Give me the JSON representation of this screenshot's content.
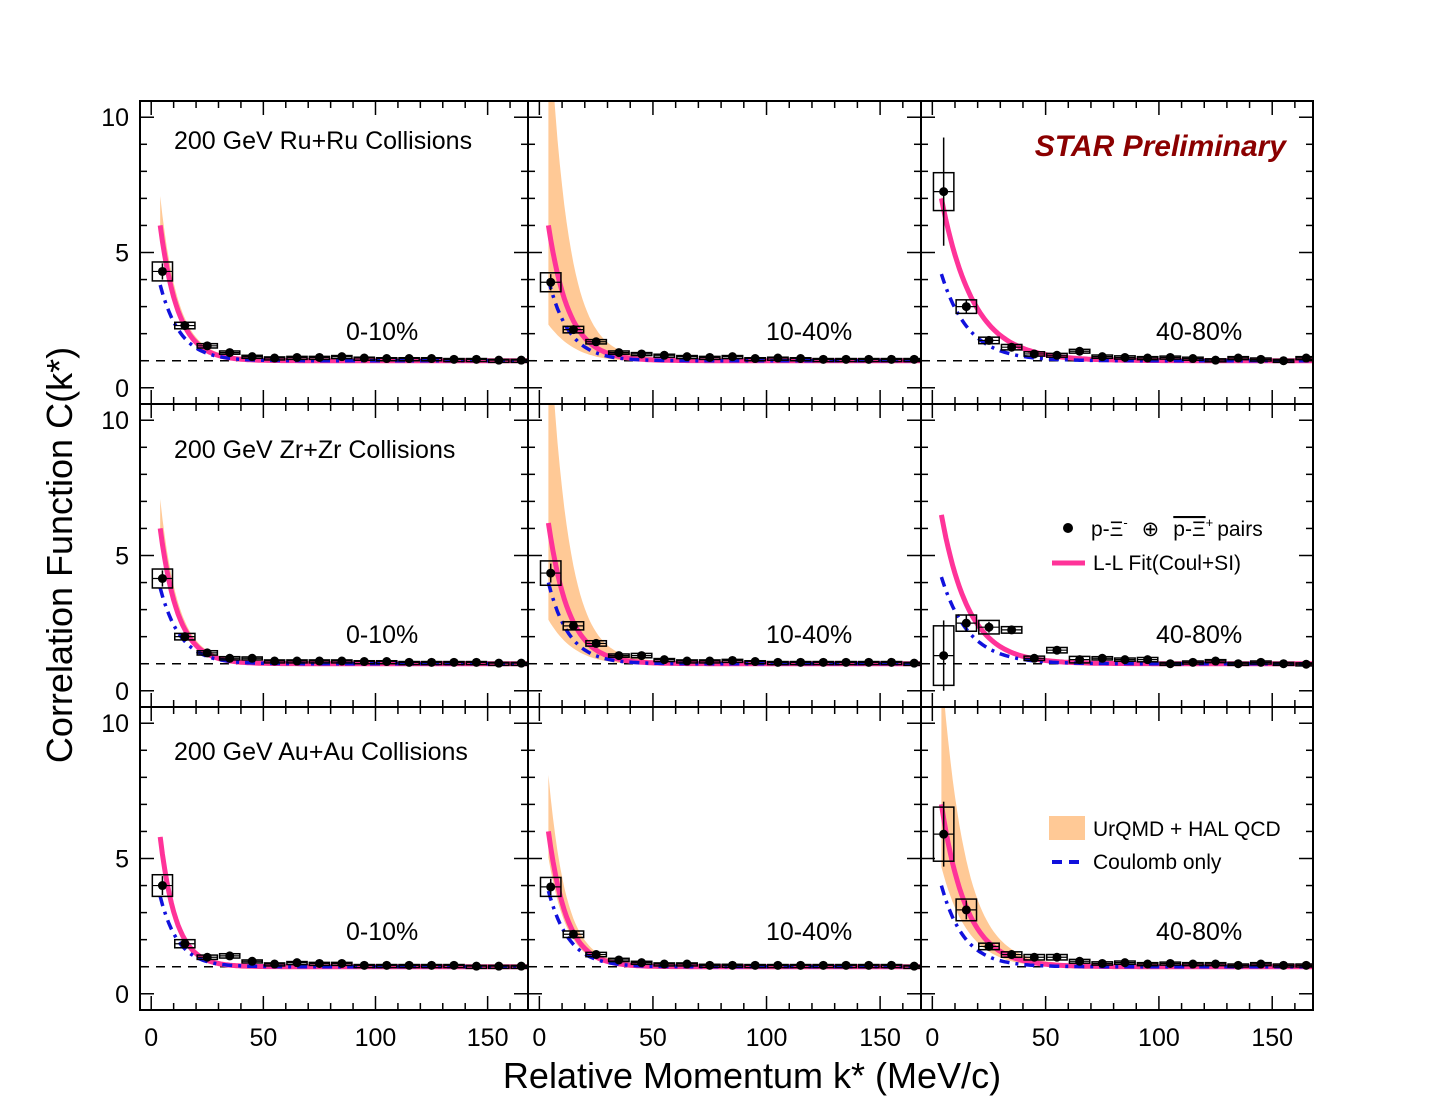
{
  "chart_data": {
    "type": "scatter",
    "ylabel": "Correlation Function C(k*)",
    "xlabel": "Relative Momentum k* (MeV/c)",
    "xlim": [
      -5,
      168
    ],
    "ylim": [
      -0.6,
      10.6
    ],
    "xticks": [
      "0",
      "50",
      "100",
      "150"
    ],
    "yticks": [
      "0",
      "5",
      "10"
    ],
    "xtick_values": [
      0,
      50,
      100,
      150
    ],
    "ytick_values": [
      0,
      5,
      10
    ],
    "reference_line": 1,
    "preliminary_label": "STAR Preliminary",
    "preliminary_color": "#8b0000",
    "colors": {
      "data": "#000000",
      "fit": "#ff3399",
      "band": "#ffc996",
      "coulomb": "#1111dd"
    },
    "row_titles": [
      "200 GeV Ru+Ru Collisions",
      "200 GeV Zr+Zr Collisions",
      "200 GeV Au+Au Collisions"
    ],
    "centralities": [
      "0-10%",
      "10-40%",
      "40-80%"
    ],
    "legend": {
      "data_prefix": "p-Ξ",
      "data_oplus": "⊕",
      "data_anti": "p-Ξ",
      "data_suffix": "pairs",
      "data_sup_minus": "-",
      "data_sup_plus": "+",
      "fit": "L-L Fit(Coul+SI)",
      "band": "UrQMD + HAL QCD",
      "coulomb": "Coulomb only"
    },
    "kstar": [
      5,
      15,
      25,
      35,
      45,
      55,
      65,
      75,
      85,
      95,
      105,
      115,
      125,
      135,
      145,
      155,
      165
    ],
    "panels": [
      {
        "row": 0,
        "col": 0,
        "y": [
          4.3,
          2.3,
          1.55,
          1.3,
          1.15,
          1.1,
          1.12,
          1.12,
          1.15,
          1.1,
          1.08,
          1.08,
          1.08,
          1.05,
          1.05,
          1.02,
          1.02
        ],
        "err": [
          0.3,
          0.12,
          0.08,
          0.06,
          0.05,
          0.04,
          0.04,
          0.04,
          0.04,
          0.03,
          0.03,
          0.03,
          0.03,
          0.03,
          0.03,
          0.03,
          0.03
        ],
        "sys": [
          0.35,
          0.12,
          0.08,
          0.06,
          0.05,
          0.04,
          0.04,
          0.04,
          0.04,
          0.03,
          0.03,
          0.03,
          0.03,
          0.03,
          0.03,
          0.03,
          0.03
        ],
        "fit_amp": 5.0,
        "fit_tau": 8,
        "coul_amp": 2.8,
        "coul_tau": 9,
        "band_amp": 6.0
      },
      {
        "row": 0,
        "col": 1,
        "y": [
          3.9,
          2.15,
          1.7,
          1.3,
          1.25,
          1.2,
          1.15,
          1.12,
          1.15,
          1.08,
          1.1,
          1.08,
          1.05,
          1.05,
          1.05,
          1.05,
          1.05
        ],
        "err": [
          0.3,
          0.12,
          0.08,
          0.06,
          0.05,
          0.04,
          0.04,
          0.04,
          0.04,
          0.03,
          0.03,
          0.03,
          0.03,
          0.03,
          0.03,
          0.03,
          0.03
        ],
        "sys": [
          0.35,
          0.12,
          0.08,
          0.06,
          0.05,
          0.04,
          0.04,
          0.04,
          0.04,
          0.03,
          0.03,
          0.03,
          0.03,
          0.03,
          0.03,
          0.03,
          0.03
        ],
        "fit_amp": 5.0,
        "fit_tau": 9,
        "coul_amp": 3.0,
        "coul_tau": 9,
        "band_amp": 13.0
      },
      {
        "row": 0,
        "col": 2,
        "y": [
          7.25,
          3.0,
          1.75,
          1.5,
          1.25,
          1.2,
          1.35,
          1.15,
          1.12,
          1.1,
          1.12,
          1.08,
          1.02,
          1.1,
          1.05,
          1.0,
          1.1
        ],
        "err": [
          2.0,
          0.25,
          0.15,
          0.1,
          0.08,
          0.07,
          0.07,
          0.06,
          0.06,
          0.05,
          0.05,
          0.05,
          0.05,
          0.05,
          0.05,
          0.05,
          0.05
        ],
        "sys": [
          0.7,
          0.25,
          0.12,
          0.1,
          0.08,
          0.07,
          0.07,
          0.06,
          0.06,
          0.05,
          0.05,
          0.05,
          0.05,
          0.05,
          0.05,
          0.05,
          0.05
        ],
        "fit_amp": 6.0,
        "fit_tau": 14,
        "coul_amp": 3.2,
        "coul_tau": 12,
        "band_amp": 6.0
      },
      {
        "row": 1,
        "col": 0,
        "y": [
          4.15,
          2.0,
          1.4,
          1.2,
          1.2,
          1.1,
          1.1,
          1.1,
          1.1,
          1.08,
          1.08,
          1.05,
          1.05,
          1.05,
          1.05,
          1.02,
          1.02
        ],
        "err": [
          0.3,
          0.12,
          0.08,
          0.06,
          0.05,
          0.04,
          0.04,
          0.04,
          0.04,
          0.03,
          0.03,
          0.03,
          0.03,
          0.03,
          0.03,
          0.03,
          0.03
        ],
        "sys": [
          0.35,
          0.12,
          0.08,
          0.06,
          0.05,
          0.04,
          0.04,
          0.04,
          0.04,
          0.03,
          0.03,
          0.03,
          0.03,
          0.03,
          0.03,
          0.03,
          0.03
        ],
        "fit_amp": 5.0,
        "fit_tau": 8,
        "coul_amp": 2.8,
        "coul_tau": 9,
        "band_amp": 6.0
      },
      {
        "row": 1,
        "col": 1,
        "y": [
          4.35,
          2.4,
          1.75,
          1.3,
          1.3,
          1.15,
          1.1,
          1.1,
          1.12,
          1.08,
          1.05,
          1.05,
          1.05,
          1.05,
          1.05,
          1.05,
          1.02
        ],
        "err": [
          0.35,
          0.12,
          0.08,
          0.06,
          0.05,
          0.04,
          0.04,
          0.04,
          0.04,
          0.03,
          0.03,
          0.03,
          0.03,
          0.03,
          0.03,
          0.03,
          0.03
        ],
        "sys": [
          0.45,
          0.15,
          0.1,
          0.06,
          0.08,
          0.04,
          0.04,
          0.04,
          0.04,
          0.03,
          0.03,
          0.03,
          0.03,
          0.03,
          0.03,
          0.03,
          0.03
        ],
        "fit_amp": 5.2,
        "fit_tau": 9,
        "coul_amp": 3.0,
        "coul_tau": 9,
        "band_amp": 13.0
      },
      {
        "row": 1,
        "col": 2,
        "y": [
          1.3,
          2.5,
          2.35,
          2.25,
          1.2,
          1.5,
          1.15,
          1.2,
          1.15,
          1.15,
          1.0,
          1.05,
          1.1,
          1.0,
          1.05,
          1.0,
          0.98
        ],
        "err": [
          1.3,
          0.3,
          0.2,
          0.15,
          0.1,
          0.08,
          0.08,
          0.07,
          0.07,
          0.06,
          0.06,
          0.06,
          0.06,
          0.06,
          0.06,
          0.06,
          0.06
        ],
        "sys": [
          1.1,
          0.3,
          0.25,
          0.12,
          0.08,
          0.1,
          0.12,
          0.06,
          0.06,
          0.08,
          0.05,
          0.05,
          0.05,
          0.05,
          0.05,
          0.05,
          0.05
        ],
        "fit_amp": 5.5,
        "fit_tau": 12,
        "coul_amp": 3.2,
        "coul_tau": 12,
        "band_amp": 4.5
      },
      {
        "row": 2,
        "col": 0,
        "y": [
          4.0,
          1.85,
          1.35,
          1.4,
          1.2,
          1.1,
          1.15,
          1.12,
          1.12,
          1.05,
          1.05,
          1.05,
          1.05,
          1.05,
          1.02,
          1.02,
          1.02
        ],
        "err": [
          0.35,
          0.12,
          0.08,
          0.06,
          0.05,
          0.04,
          0.04,
          0.04,
          0.04,
          0.03,
          0.03,
          0.03,
          0.03,
          0.03,
          0.03,
          0.03,
          0.03
        ],
        "sys": [
          0.4,
          0.15,
          0.08,
          0.08,
          0.05,
          0.04,
          0.04,
          0.04,
          0.04,
          0.03,
          0.03,
          0.03,
          0.03,
          0.03,
          0.03,
          0.03,
          0.03
        ],
        "fit_amp": 4.8,
        "fit_tau": 7,
        "coul_amp": 2.6,
        "coul_tau": 8,
        "band_amp": 4.0
      },
      {
        "row": 2,
        "col": 1,
        "y": [
          3.95,
          2.2,
          1.45,
          1.25,
          1.15,
          1.1,
          1.1,
          1.05,
          1.05,
          1.05,
          1.05,
          1.05,
          1.05,
          1.05,
          1.05,
          1.05,
          1.02
        ],
        "err": [
          0.3,
          0.12,
          0.08,
          0.06,
          0.05,
          0.04,
          0.04,
          0.04,
          0.04,
          0.03,
          0.03,
          0.03,
          0.03,
          0.03,
          0.03,
          0.03,
          0.03
        ],
        "sys": [
          0.35,
          0.12,
          0.08,
          0.06,
          0.05,
          0.04,
          0.04,
          0.04,
          0.04,
          0.03,
          0.03,
          0.03,
          0.03,
          0.03,
          0.03,
          0.03,
          0.03
        ],
        "fit_amp": 5.0,
        "fit_tau": 8,
        "coul_amp": 2.8,
        "coul_tau": 9,
        "band_amp": 7.0
      },
      {
        "row": 2,
        "col": 2,
        "y": [
          5.9,
          3.1,
          1.75,
          1.45,
          1.35,
          1.35,
          1.2,
          1.12,
          1.15,
          1.1,
          1.12,
          1.1,
          1.1,
          1.05,
          1.1,
          1.05,
          1.05
        ],
        "err": [
          1.2,
          0.35,
          0.15,
          0.1,
          0.08,
          0.07,
          0.07,
          0.06,
          0.06,
          0.05,
          0.05,
          0.05,
          0.05,
          0.05,
          0.05,
          0.05,
          0.05
        ],
        "sys": [
          1.0,
          0.4,
          0.12,
          0.1,
          0.1,
          0.1,
          0.07,
          0.06,
          0.06,
          0.05,
          0.05,
          0.05,
          0.05,
          0.05,
          0.05,
          0.05,
          0.05
        ],
        "fit_amp": 6.0,
        "fit_tau": 11,
        "coul_amp": 3.0,
        "coul_tau": 10,
        "band_amp": 11.0
      }
    ]
  }
}
